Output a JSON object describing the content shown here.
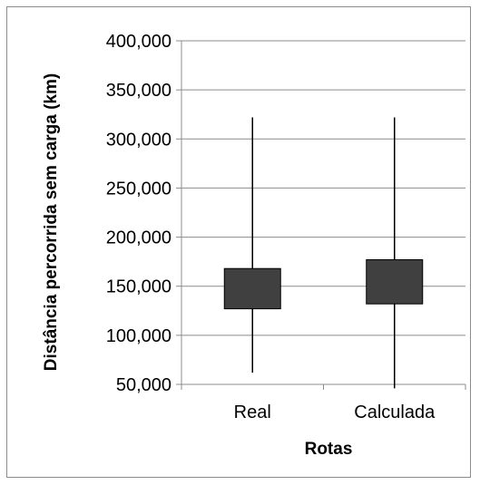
{
  "chart_data": {
    "type": "box",
    "title": "",
    "xlabel": "Rotas",
    "ylabel": "Distância percorrida sem carga (km)",
    "ylim": [
      50000,
      400000
    ],
    "y_ticks": [
      50000,
      100000,
      150000,
      200000,
      250000,
      300000,
      350000,
      400000
    ],
    "y_tick_labels": [
      "50,000",
      "100,000",
      "150,000",
      "200,000",
      "250,000",
      "300,000",
      "350,000",
      "400,000"
    ],
    "grid": true,
    "legend": "none",
    "categories": [
      "Real",
      "Calculada"
    ],
    "boxes": [
      {
        "category": "Real",
        "min": 62000,
        "q1": 127000,
        "q3": 168000,
        "max": 322000
      },
      {
        "category": "Calculada",
        "min": 46000,
        "q1": 132000,
        "q3": 177000,
        "max": 322000
      }
    ],
    "colors": {
      "box_fill": "#404040",
      "box_stroke": "#000000",
      "whisker": "#000000",
      "gridline": "#8c8c8c",
      "axis": "#8c8c8c"
    }
  }
}
